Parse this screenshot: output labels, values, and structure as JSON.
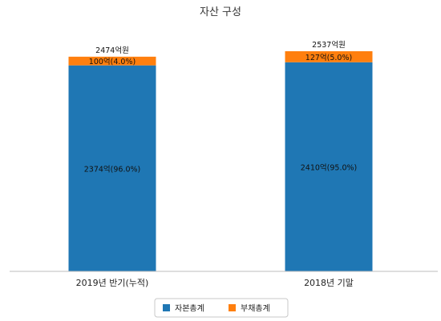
{
  "chart_data": {
    "type": "bar",
    "stacked": true,
    "title": "자산 구성",
    "categories": [
      "2019년 반기(누적)",
      "2018년 기말"
    ],
    "series": [
      {
        "name": "자본총계",
        "color": "#1f77b4",
        "values": [
          2374,
          2410
        ],
        "labels": [
          "2374억(96.0%)",
          "2410억(95.0%)"
        ]
      },
      {
        "name": "부채총계",
        "color": "#ff7f0e",
        "values": [
          100,
          127
        ],
        "labels": [
          "100억(4.0%)",
          "127억(5.0%)"
        ]
      }
    ],
    "totals": [
      2474,
      2537
    ],
    "total_labels": [
      "2474억원",
      "2537억원"
    ],
    "legend_position": "bottom",
    "grid": false
  }
}
